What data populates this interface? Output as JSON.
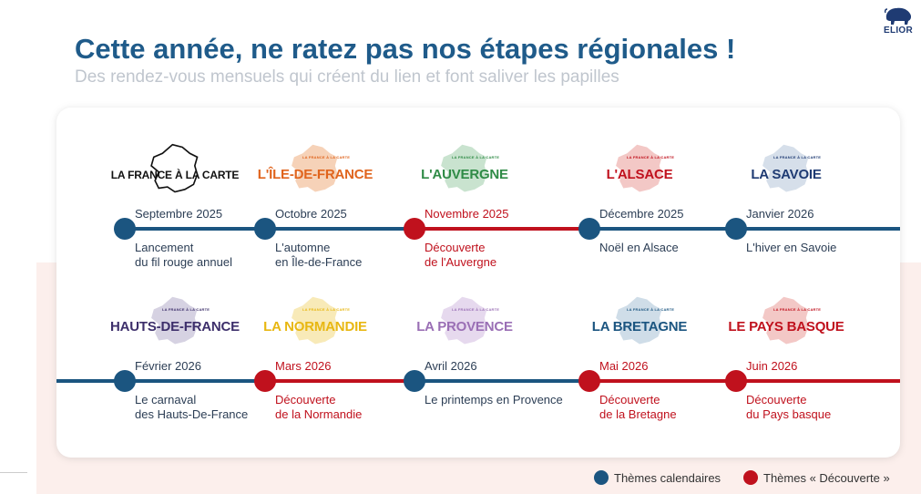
{
  "brand": {
    "logo_text": "ELIOR",
    "color": "#1f3b73"
  },
  "title": "Cette année, ne ratez pas nos étapes régionales !",
  "subtitle": "Des rendez-vous mensuels qui créent du lien et font saliver les papilles",
  "map_caption": "LA FRANCE À LA CARTE",
  "colors": {
    "calendar": "#1b5580",
    "discovery": "#c0111d",
    "title": "#1f5b8a"
  },
  "rows": [
    {
      "stages": [
        {
          "region": "LA FRANCE À LA CARTE",
          "region_color": "#111111",
          "map_color": "none",
          "date": "Septembre 2025",
          "desc_line1": "Lancement",
          "desc_line2": "du fil rouge annuel",
          "theme": "calendar"
        },
        {
          "region": "L'ÎLE-DE-FRANCE",
          "region_color": "#e0641d",
          "map_color": "#f6d2b8",
          "date": "Octobre 2025",
          "desc_line1": "L'automne",
          "desc_line2": "en Île-de-France",
          "theme": "calendar"
        },
        {
          "region": "L'AUVERGNE",
          "region_color": "#2f8b46",
          "map_color": "#c9e3cf",
          "date": "Novembre 2025",
          "desc_line1": "Découverte",
          "desc_line2": "de l'Auvergne",
          "theme": "discovery"
        },
        {
          "region": "L'ALSACE",
          "region_color": "#c0111d",
          "map_color": "#f3c8c6",
          "date": "Décembre 2025",
          "desc_line1": "Noël en Alsace",
          "desc_line2": "",
          "theme": "calendar"
        },
        {
          "region": "LA SAVOIE",
          "region_color": "#1f3b73",
          "map_color": "#d6dfea",
          "date": "Janvier 2026",
          "desc_line1": "L'hiver en Savoie",
          "desc_line2": "",
          "theme": "calendar"
        }
      ]
    },
    {
      "stages": [
        {
          "region": "HAUTS-DE-FRANCE",
          "region_color": "#3d2f6b",
          "map_color": "#d6d2e2",
          "date": "Février 2026",
          "desc_line1": "Le carnaval",
          "desc_line2": "des Hauts-De-France",
          "theme": "calendar"
        },
        {
          "region": "LA NORMANDIE",
          "region_color": "#e8b712",
          "map_color": "#f8eab8",
          "date": "Mars 2026",
          "desc_line1": "Découverte",
          "desc_line2": "de la Normandie",
          "theme": "discovery"
        },
        {
          "region": "LA PROVENCE",
          "region_color": "#9a6fb5",
          "map_color": "#e6d9ee",
          "date": "Avril 2026",
          "desc_line1": "Le printemps en Provence",
          "desc_line2": "",
          "theme": "calendar"
        },
        {
          "region": "LA BRETAGNE",
          "region_color": "#1b5580",
          "map_color": "#cfdde8",
          "date": "Mai 2026",
          "desc_line1": "Découverte",
          "desc_line2": "de la Bretagne",
          "theme": "discovery"
        },
        {
          "region": "LE PAYS BASQUE",
          "region_color": "#c0111d",
          "map_color": "#f3c8c6",
          "date": "Juin 2026",
          "desc_line1": "Découverte",
          "desc_line2": "du Pays basque",
          "theme": "discovery"
        }
      ]
    }
  ],
  "legend": [
    {
      "label": "Thèmes calendaires",
      "theme": "calendar"
    },
    {
      "label": "Thèmes « Découverte »",
      "theme": "discovery"
    }
  ]
}
